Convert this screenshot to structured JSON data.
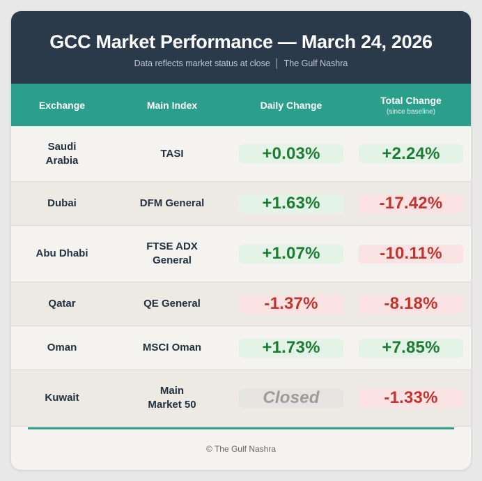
{
  "header": {
    "title": "GCC Market Performance — March 24, 2026",
    "subtitle_left": "Data reflects market status at close",
    "subtitle_separator": "│",
    "subtitle_right": "The Gulf Nashra"
  },
  "columns": [
    {
      "label": "Exchange",
      "sub": ""
    },
    {
      "label": "Main Index",
      "sub": ""
    },
    {
      "label": "Daily Change",
      "sub": ""
    },
    {
      "label": "Total Change",
      "sub": "(since baseline)"
    }
  ],
  "rows": [
    {
      "exchange": "Saudi\nArabia",
      "index": "TASI",
      "daily": "+0.03%",
      "daily_status": "pos",
      "total": "+2.24%",
      "total_status": "pos"
    },
    {
      "exchange": "Dubai",
      "index": "DFM General",
      "daily": "+1.63%",
      "daily_status": "pos",
      "total": "-17.42%",
      "total_status": "neg"
    },
    {
      "exchange": "Abu Dhabi",
      "index": "FTSE ADX\nGeneral",
      "daily": "+1.07%",
      "daily_status": "pos",
      "total": "-10.11%",
      "total_status": "neg"
    },
    {
      "exchange": "Qatar",
      "index": "QE General",
      "daily": "-1.37%",
      "daily_status": "neg",
      "total": "-8.18%",
      "total_status": "neg"
    },
    {
      "exchange": "Oman",
      "index": "MSCI Oman",
      "daily": "+1.73%",
      "daily_status": "pos",
      "total": "+7.85%",
      "total_status": "pos"
    },
    {
      "exchange": "Kuwait",
      "index": "Main\nMarket 50",
      "daily": "Closed",
      "daily_status": "closed",
      "total": "-1.33%",
      "total_status": "neg"
    }
  ],
  "footer": "© The Gulf Nashra",
  "colors": {
    "header_bg": "#2b3a4b",
    "table_header_bg": "#2c9e8c",
    "positive": "#1f7a35",
    "positive_bg": "#e3f3e6",
    "negative": "#c2352f",
    "negative_bg": "#fbe3e3",
    "closed": "#9b9b9b"
  }
}
